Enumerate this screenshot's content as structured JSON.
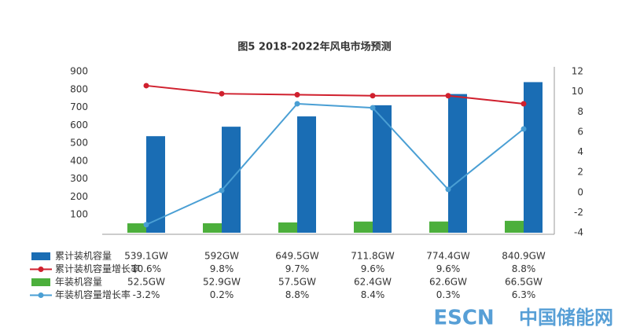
{
  "chart_data": {
    "type": "bar-line",
    "title": "图5 2018-2022年风电市场预测",
    "categories": [
      null,
      null,
      null,
      null,
      null,
      null
    ],
    "ylim": [
      0,
      900
    ],
    "yticks": [
      100,
      200,
      300,
      400,
      500,
      600,
      700,
      800,
      900
    ],
    "y2lim": [
      -4,
      12
    ],
    "y2ticks": [
      -4,
      -2,
      0,
      2,
      4,
      6,
      8,
      10,
      12
    ],
    "series": [
      {
        "name": "累计装机容量",
        "type": "bar",
        "color": "#1a6db4",
        "values": [
          539.1,
          592,
          649.5,
          711.8,
          774.4,
          840.9
        ],
        "value_labels": [
          "539.1GW",
          "592GW",
          "649.5GW",
          "711.8GW",
          "774.4GW",
          "840.9GW"
        ]
      },
      {
        "name": "累计装机容量增长率",
        "type": "line",
        "axis": "y2",
        "color": "#d0202e",
        "values": [
          10.6,
          9.8,
          9.7,
          9.6,
          9.6,
          8.8
        ],
        "value_labels": [
          "10.6%",
          "9.8%",
          "9.7%",
          "9.6%",
          "9.6%",
          "8.8%"
        ]
      },
      {
        "name": "年装机容量",
        "type": "bar",
        "color": "#4caf3c",
        "values": [
          52.5,
          52.9,
          57.5,
          62.4,
          62.6,
          66.5
        ],
        "value_labels": [
          "52.5GW",
          "52.9GW",
          "57.5GW",
          "62.4GW",
          "62.6GW",
          "66.5GW"
        ]
      },
      {
        "name": "年装机容量增长率",
        "type": "line",
        "axis": "y2",
        "color": "#4a9fd4",
        "values": [
          -3.2,
          0.2,
          8.8,
          8.4,
          0.3,
          6.3
        ],
        "value_labels": [
          "-3.2%",
          "0.2%",
          "8.8%",
          "8.4%",
          "0.3%",
          "6.3%"
        ]
      }
    ],
    "watermark": [
      "ESCN",
      "中国储能网"
    ]
  }
}
